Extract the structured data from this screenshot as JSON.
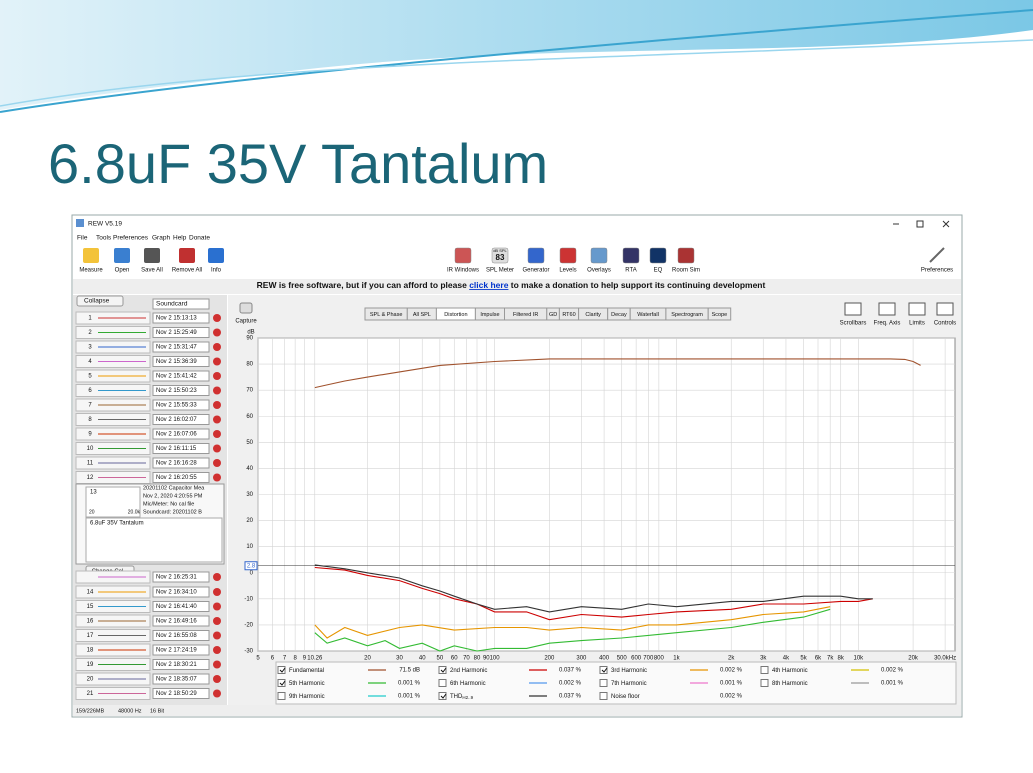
{
  "slide_title": "6.8uF 35V Tantalum",
  "window": {
    "title": "REW V5.19",
    "menu": [
      "File",
      "Tools",
      "Preferences",
      "Graph",
      "Help",
      "Donate"
    ]
  },
  "toolbar": {
    "left": [
      "Measure",
      "Open",
      "Save All",
      "Remove All",
      "Info"
    ],
    "right": [
      "IR Windows",
      "SPL Meter",
      "Generator",
      "Levels",
      "Overlays",
      "RTA",
      "EQ",
      "Room Sim"
    ],
    "spl_meter": {
      "unit": "dB SPL",
      "value": "83"
    },
    "preferences": "Preferences"
  },
  "banner": {
    "before": "REW is free software, but if you can afford to please ",
    "link": "click here",
    "after": " to make a donation to help support its continuing development"
  },
  "measurements": {
    "collapse": "Collapse",
    "header": "Soundcard",
    "items": [
      {
        "index": "1",
        "date": "Nov 2 15:13:13"
      },
      {
        "index": "2",
        "date": "Nov 2 15:25:49"
      },
      {
        "index": "3",
        "date": "Nov 2 15:31:47"
      },
      {
        "index": "4",
        "date": "Nov 2 15:36:39"
      },
      {
        "index": "5",
        "date": "Nov 2 15:41:42"
      },
      {
        "index": "6",
        "date": "Nov 2 15:50:23"
      },
      {
        "index": "7",
        "date": "Nov 2 15:55:33"
      },
      {
        "index": "8",
        "date": "Nov 2 16:02:07"
      },
      {
        "index": "9",
        "date": "Nov 2 16:07:06"
      },
      {
        "index": "10",
        "date": "Nov 2 16:11:15"
      },
      {
        "index": "11",
        "date": "Nov 2 16:16:28"
      },
      {
        "index": "12",
        "date": "Nov 2 16:20:55"
      }
    ],
    "selected": {
      "index": "13",
      "lines": [
        "20201102 Capacitor Mea",
        "Nov 2, 2020 4:20:55 PM",
        "Mic/Meter: No cal file",
        "Soundcard: 20201102 B"
      ],
      "thumb_axis": [
        "20",
        "20.0k"
      ],
      "notes": "6.8uF 35V Tantalum",
      "change_cal": "Change Cal..."
    },
    "items_after": [
      {
        "date": "Nov 2 16:25:31"
      },
      {
        "index": "14",
        "date": "Nov 2 16:34:10"
      },
      {
        "index": "15",
        "date": "Nov 2 16:41:40"
      },
      {
        "index": "16",
        "date": "Nov 2 16:49:16"
      },
      {
        "index": "17",
        "date": "Nov 2 16:55:08"
      },
      {
        "index": "18",
        "date": "Nov 2 17:24:19"
      },
      {
        "index": "19",
        "date": "Nov 2 18:30:21"
      },
      {
        "index": "20",
        "date": "Nov 2 18:35:07"
      },
      {
        "index": "21",
        "date": "Nov 2 18:50:29"
      }
    ]
  },
  "graph": {
    "capture": "Capture",
    "tabs": [
      "SPL & Phase",
      "All SPL",
      "Distortion",
      "Impulse",
      "Filtered IR",
      "GD",
      "RT60",
      "Clarity",
      "Decay",
      "Waterfall",
      "Spectrogram",
      "Scope"
    ],
    "active_tab": 2,
    "controls": [
      "Scrollbars",
      "Freq. Axis",
      "Limits",
      "Controls"
    ],
    "y_unit": "dB",
    "cursor_value": "2.8",
    "log_x": true,
    "grid": true,
    "xlim": [
      5,
      34000
    ],
    "ylim": [
      -30,
      90
    ],
    "xticks": [
      5,
      6,
      7,
      8,
      9,
      10.26,
      20,
      30,
      40,
      50,
      60,
      70,
      80,
      90,
      100,
      200,
      300,
      400,
      500,
      600,
      700,
      800,
      {
        "value": 1000,
        "label": "1k"
      },
      {
        "value": 2000,
        "label": "2k"
      },
      {
        "value": 3000,
        "label": "3k"
      },
      {
        "value": 4000,
        "label": "4k"
      },
      {
        "value": 5000,
        "label": "5k"
      },
      {
        "value": 6000,
        "label": "6k"
      },
      {
        "value": 7000,
        "label": "7k"
      },
      {
        "value": 8000,
        "label": "8k"
      },
      {
        "value": 10000,
        "label": "10k"
      },
      {
        "value": 20000,
        "label": "20k"
      },
      {
        "value": 30000,
        "label": "30.0kHz"
      }
    ],
    "yticks": [
      90,
      80,
      70,
      60,
      50,
      40,
      30,
      20,
      10,
      0,
      -10,
      -20,
      -30
    ],
    "series": [
      {
        "name": "Fundamental",
        "color": "#a0522d",
        "checked": true,
        "reading": "71.5 dB",
        "x": [
          10.26,
          12,
          15,
          20,
          30,
          50,
          100,
          200,
          500,
          1000,
          5000,
          10000,
          15000,
          18000,
          20000,
          22000
        ],
        "values": [
          71,
          72,
          73.5,
          75,
          77,
          79.5,
          81,
          82,
          82,
          82,
          82,
          82,
          82,
          81.8,
          81,
          79.5
        ]
      },
      {
        "name": "2nd Harmonic",
        "color": "#cc0000",
        "checked": true,
        "reading": "0.037 %",
        "x": [
          10.26,
          15,
          20,
          30,
          40,
          50,
          60,
          80,
          100,
          150,
          200,
          300,
          500,
          700,
          1000,
          2000,
          3000,
          5000,
          8000,
          10000,
          12000
        ],
        "values": [
          2,
          1,
          -1,
          -3,
          -6,
          -8,
          -10,
          -12,
          -15,
          -15,
          -18,
          -16,
          -17,
          -16,
          -15,
          -14,
          -12,
          -12,
          -11,
          -11,
          -10
        ]
      },
      {
        "name": "3rd Harmonic",
        "color": "#e69500",
        "checked": true,
        "reading": "0.002 %",
        "x": [
          10.26,
          12,
          15,
          20,
          30,
          40,
          60,
          100,
          150,
          200,
          300,
          500,
          700,
          1000,
          2000,
          3000,
          5000,
          7000
        ],
        "values": [
          -20,
          -25,
          -21,
          -24,
          -21,
          -20,
          -22,
          -21,
          -21,
          -22,
          -21,
          -22,
          -20,
          -20,
          -18,
          -16,
          -15,
          -13
        ]
      },
      {
        "name": "4th Harmonic",
        "color": "#d4c000",
        "checked": false,
        "reading": "0.002 %"
      },
      {
        "name": "5th Harmonic",
        "color": "#33bb33",
        "checked": true,
        "reading": "0.001 %",
        "x": [
          10.26,
          12,
          15,
          20,
          25,
          30,
          40,
          50,
          60,
          80,
          100,
          150,
          200,
          300,
          500,
          1000,
          2000,
          3000,
          5000,
          7000
        ],
        "values": [
          -23,
          -27,
          -25,
          -28,
          -26,
          -29,
          -27,
          -30,
          -28,
          -30,
          -29,
          -29,
          -27,
          -26,
          -25,
          -23,
          -21,
          -19,
          -17,
          -14
        ]
      },
      {
        "name": "6th Harmonic",
        "color": "#5599ee",
        "checked": false,
        "reading": "0.002 %"
      },
      {
        "name": "7th Harmonic",
        "color": "#ee77cc",
        "checked": false,
        "reading": "0.001 %"
      },
      {
        "name": "8th Harmonic",
        "color": "#999999",
        "checked": false,
        "reading": "0.001 %"
      },
      {
        "name": "9th Harmonic",
        "color": "#22cccc",
        "checked": false,
        "reading": "0.001 %"
      },
      {
        "name": "THD",
        "sub": "H2..9",
        "color": "#333333",
        "checked": true,
        "reading": "0.037 %",
        "x": [
          10.26,
          15,
          20,
          30,
          40,
          50,
          60,
          80,
          100,
          150,
          200,
          300,
          500,
          700,
          1000,
          2000,
          3000,
          5000,
          8000,
          10000,
          12000
        ],
        "values": [
          3,
          1.5,
          0,
          -2,
          -5,
          -7,
          -9,
          -12,
          -14,
          -13,
          -15,
          -13,
          -14,
          -12,
          -13,
          -11,
          -11,
          -9,
          -9,
          -10,
          -10
        ]
      },
      {
        "name": "Noise floor",
        "color": "#8b4513",
        "checked": false,
        "reading": "0.002 %"
      }
    ]
  },
  "status": [
    "159/226MB",
    "48000 Hz",
    "16 Bit"
  ]
}
